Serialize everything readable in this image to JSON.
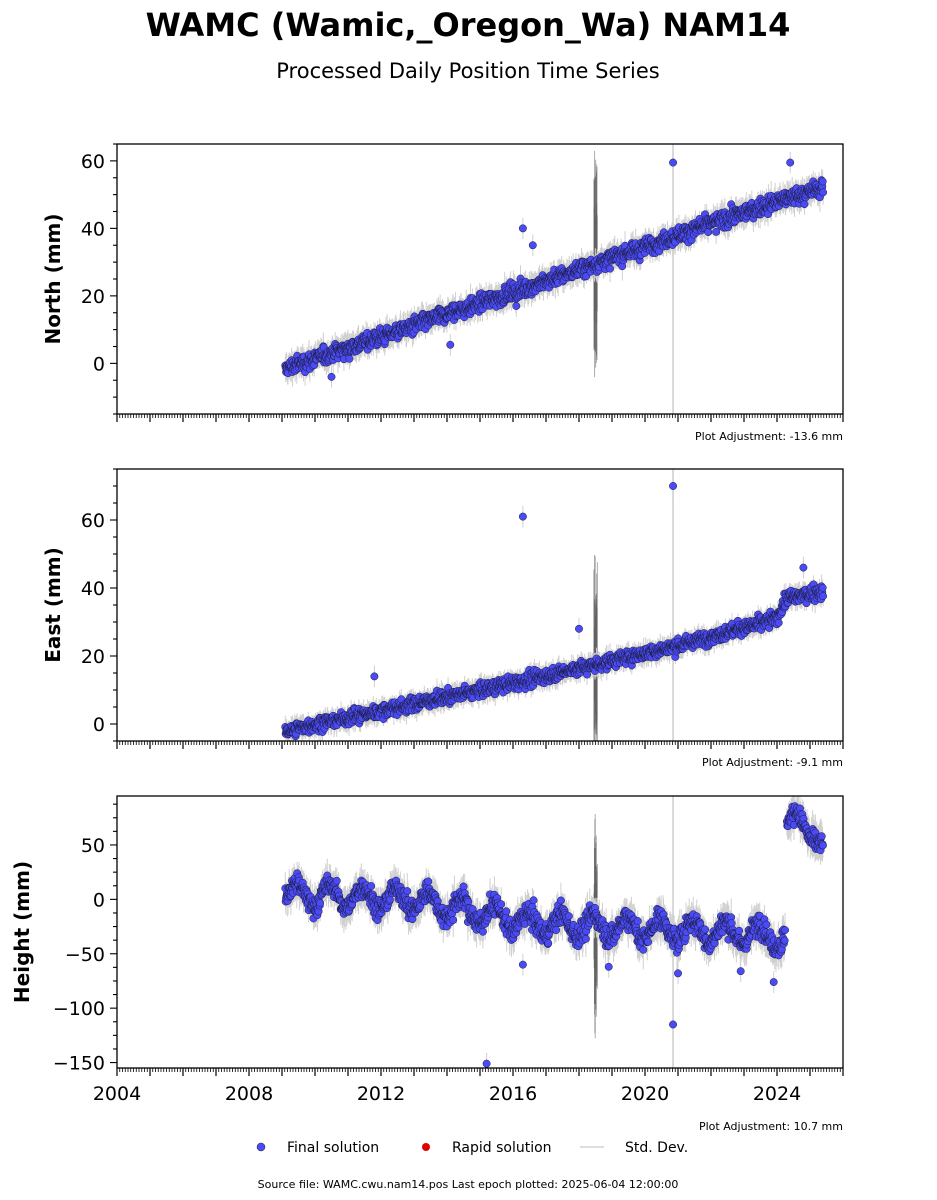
{
  "header": {
    "title": "WAMC (Wamic,_Oregon_Wa) NAM14",
    "subtitle": "Processed Daily Position Time Series"
  },
  "footer": {
    "source": "Source file: WAMC.cwu.nam14.pos  Last epoch plotted: 2025-06-04 12:00:00"
  },
  "legend": {
    "items": [
      {
        "label": "Final solution",
        "color": "#4b4bf5",
        "marker": "circle"
      },
      {
        "label": "Rapid solution",
        "color": "#e00000",
        "marker": "circle"
      },
      {
        "label": "Std. Dev.",
        "color": "#d3d3d3",
        "marker": "line"
      }
    ]
  },
  "colors": {
    "final": "#4b4bf5",
    "final_edge": "#1a1a3a",
    "rapid": "#e00000",
    "stddev": "#d0d0d0",
    "stddev_dark": "#555555"
  },
  "chart_data": [
    {
      "type": "scatter",
      "name": "north",
      "ylabel": "North (mm)",
      "adjustment": "Plot Adjustment: -13.6 mm",
      "xlim": [
        2004,
        2026
      ],
      "ylim": [
        -15,
        65
      ],
      "yticks": [
        0,
        20,
        40,
        60
      ],
      "trend": [
        [
          2009.1,
          -1.5
        ],
        [
          2016.0,
          21
        ],
        [
          2021.0,
          38
        ],
        [
          2024.0,
          48
        ],
        [
          2025.4,
          52
        ]
      ],
      "noise": 2.2,
      "outliers": [
        {
          "x": 2016.3,
          "y": 40.0
        },
        {
          "x": 2016.6,
          "y": 35.0
        },
        {
          "x": 2020.85,
          "y": 59.5
        },
        {
          "x": 2010.5,
          "y": -4.0
        },
        {
          "x": 2014.1,
          "y": 5.5
        },
        {
          "x": 2016.1,
          "y": 17.0
        },
        {
          "x": 2024.4,
          "y": 59.5
        }
      ]
    },
    {
      "type": "scatter",
      "name": "east",
      "ylabel": "East (mm)",
      "adjustment": "Plot Adjustment: -9.1 mm",
      "xlim": [
        2004,
        2026
      ],
      "ylim": [
        -5,
        75
      ],
      "yticks": [
        0,
        20,
        40,
        60
      ],
      "trend": [
        [
          2009.1,
          -2.0
        ],
        [
          2016.0,
          12
        ],
        [
          2021.0,
          23
        ],
        [
          2024.0,
          31
        ],
        [
          2024.3,
          37
        ],
        [
          2025.4,
          39
        ]
      ],
      "noise": 1.8,
      "outliers": [
        {
          "x": 2016.3,
          "y": 61.0
        },
        {
          "x": 2020.85,
          "y": 70.0
        },
        {
          "x": 2011.8,
          "y": 14.0
        },
        {
          "x": 2024.8,
          "y": 46.0
        },
        {
          "x": 2018.0,
          "y": 28.0
        }
      ]
    },
    {
      "type": "scatter",
      "name": "height",
      "ylabel": "Height (mm)",
      "adjustment": "Plot Adjustment: 10.7 mm",
      "xlim": [
        2004,
        2026
      ],
      "xticks": [
        2004,
        2008,
        2012,
        2016,
        2020,
        2024
      ],
      "ylim": [
        -155,
        95
      ],
      "yticks": [
        -150,
        -100,
        -50,
        0,
        50
      ],
      "trend": [
        [
          2009.1,
          5
        ],
        [
          2013.0,
          0
        ],
        [
          2016.5,
          -22
        ],
        [
          2021.0,
          -28
        ],
        [
          2024.0,
          -33
        ],
        [
          2024.25,
          -38
        ]
      ],
      "trend2": [
        [
          2024.3,
          72
        ],
        [
          2024.6,
          82
        ],
        [
          2025.0,
          55
        ],
        [
          2025.4,
          50
        ]
      ],
      "noise": 9,
      "seasonal": 10,
      "outliers": [
        {
          "x": 2015.2,
          "y": -151.0
        },
        {
          "x": 2020.85,
          "y": -115.0
        },
        {
          "x": 2016.3,
          "y": -60.0
        },
        {
          "x": 2021.0,
          "y": -68.0
        },
        {
          "x": 2023.9,
          "y": -76.0
        },
        {
          "x": 2022.9,
          "y": -66.0
        },
        {
          "x": 2018.9,
          "y": -62.0
        }
      ]
    }
  ]
}
